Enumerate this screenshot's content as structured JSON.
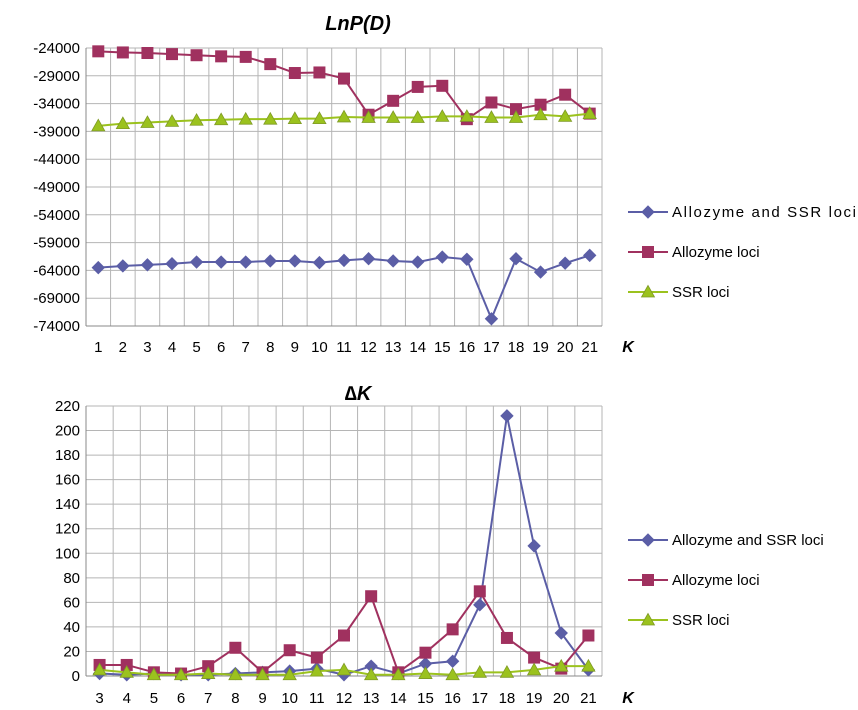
{
  "chart_data": [
    {
      "type": "line",
      "title": "LnP(D)",
      "xlabel": "K",
      "ylabel": "",
      "x": [
        1,
        2,
        3,
        4,
        5,
        6,
        7,
        8,
        9,
        10,
        11,
        12,
        13,
        14,
        15,
        16,
        17,
        18,
        19,
        20,
        21
      ],
      "ylim": [
        -74000,
        -24000
      ],
      "yticks": [
        -24000,
        -29000,
        -34000,
        -39000,
        -44000,
        -49000,
        -54000,
        -59000,
        -64000,
        -69000,
        -74000
      ],
      "grid": true,
      "legend": "right",
      "series": [
        {
          "name": "Allozyme and SSR loci",
          "color": "#5b5ea6",
          "marker": "diamond",
          "values": [
            -63500,
            -63200,
            -63000,
            -62800,
            -62500,
            -62500,
            -62500,
            -62300,
            -62300,
            -62600,
            -62200,
            -61900,
            -62300,
            -62500,
            -61600,
            -62000,
            -72700,
            -61900,
            -64300,
            -62700,
            -61300
          ]
        },
        {
          "name": "Allozyme loci",
          "color": "#a0315f",
          "marker": "square",
          "values": [
            -24600,
            -24800,
            -24900,
            -25100,
            -25300,
            -25500,
            -25600,
            -26900,
            -28500,
            -28400,
            -29500,
            -36000,
            -33500,
            -31000,
            -30800,
            -36800,
            -33800,
            -35000,
            -34200,
            -32400,
            -35800
          ]
        },
        {
          "name": "SSR loci",
          "color": "#9bc21e",
          "marker": "triangle",
          "values": [
            -38000,
            -37600,
            -37400,
            -37200,
            -37000,
            -36900,
            -36800,
            -36800,
            -36700,
            -36700,
            -36400,
            -36500,
            -36500,
            -36500,
            -36300,
            -36300,
            -36500,
            -36500,
            -36000,
            -36300,
            -35800
          ]
        }
      ]
    },
    {
      "type": "line",
      "title": "∆K",
      "xlabel": "K",
      "ylabel": "",
      "x": [
        3,
        4,
        5,
        6,
        7,
        8,
        9,
        10,
        11,
        12,
        13,
        14,
        15,
        16,
        17,
        18,
        19,
        20,
        21
      ],
      "ylim": [
        0,
        220
      ],
      "yticks": [
        0,
        20,
        40,
        60,
        80,
        100,
        120,
        140,
        160,
        180,
        200,
        220
      ],
      "grid": true,
      "legend": "right",
      "series": [
        {
          "name": "Allozyme and SSR loci",
          "color": "#5b5ea6",
          "marker": "diamond",
          "values": [
            2,
            1,
            2,
            1,
            1,
            2,
            3,
            4,
            6,
            1,
            8,
            2,
            10,
            12,
            58,
            212,
            106,
            35,
            5
          ]
        },
        {
          "name": "Allozyme loci",
          "color": "#a0315f",
          "marker": "square",
          "values": [
            9,
            9,
            3,
            2,
            8,
            23,
            3,
            21,
            15,
            33,
            65,
            3,
            19,
            38,
            69,
            31,
            15,
            6,
            33
          ]
        },
        {
          "name": "SSR loci",
          "color": "#9bc21e",
          "marker": "triangle",
          "values": [
            5,
            3,
            1,
            1,
            2,
            1,
            1,
            1,
            4,
            5,
            1,
            1,
            2,
            1,
            3,
            3,
            5,
            8,
            8
          ]
        }
      ]
    }
  ]
}
